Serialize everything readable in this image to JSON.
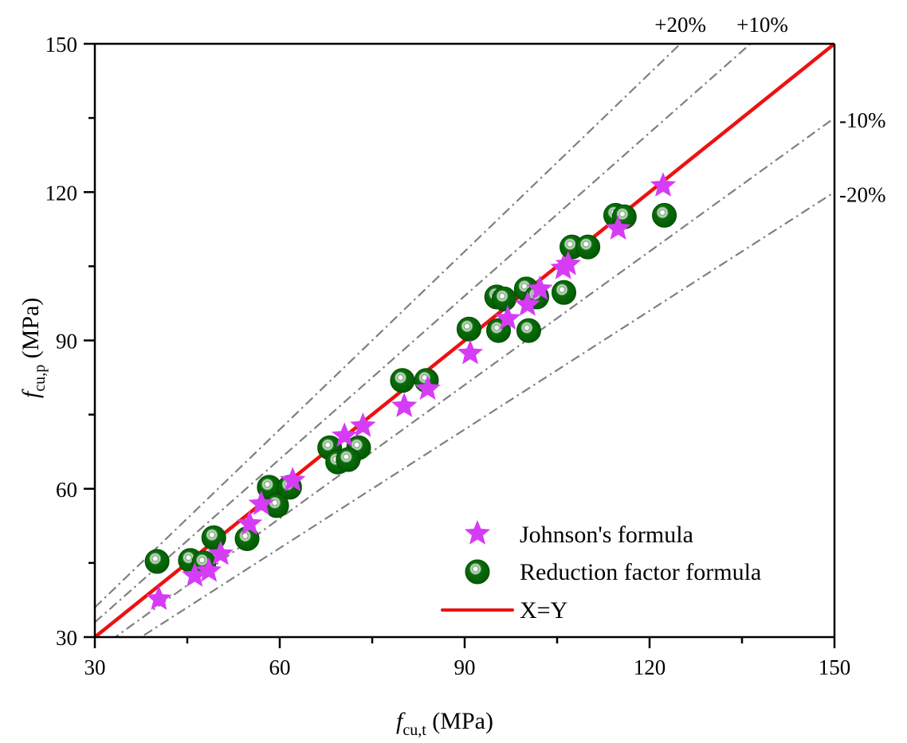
{
  "chart_data": {
    "type": "scatter",
    "title": "",
    "xlabel": {
      "var": "f",
      "sub": "cu,t",
      "unit": " (MPa)"
    },
    "ylabel": {
      "var": "f",
      "sub": "cu,p",
      "unit": " (MPa)"
    },
    "xlim": [
      30,
      150
    ],
    "ylim": [
      30,
      150
    ],
    "x_ticks": [
      30,
      60,
      90,
      120,
      150
    ],
    "y_ticks": [
      30,
      60,
      90,
      120,
      150
    ],
    "x_minor_ticks": [
      45,
      75,
      105,
      135
    ],
    "y_minor_ticks": [
      45,
      75,
      105,
      135
    ],
    "grid": false,
    "legend_position": "bottom-right",
    "series": [
      {
        "name": "Johnson's formula",
        "marker": "star",
        "color": "#d63cf5",
        "points": [
          [
            40.4,
            37.7
          ],
          [
            46.2,
            42.4
          ],
          [
            48.5,
            43.4
          ],
          [
            50.4,
            46.8
          ],
          [
            55.1,
            52.9
          ],
          [
            57.0,
            56.9
          ],
          [
            62.1,
            61.7
          ],
          [
            70.5,
            70.7
          ],
          [
            73.5,
            72.7
          ],
          [
            80.2,
            76.7
          ],
          [
            84.0,
            80.2
          ],
          [
            90.9,
            87.4
          ],
          [
            97.0,
            94.4
          ],
          [
            100.2,
            97.2
          ],
          [
            102.2,
            100.4
          ],
          [
            106.0,
            104.6
          ],
          [
            106.8,
            105.4
          ],
          [
            114.9,
            112.6
          ],
          [
            122.2,
            121.3
          ]
        ]
      },
      {
        "name": "Reduction factor formula",
        "marker": "sphere",
        "color": "#006400",
        "points": [
          [
            40.1,
            45.3
          ],
          [
            45.5,
            45.5
          ],
          [
            47.7,
            45.0
          ],
          [
            49.3,
            50.1
          ],
          [
            54.7,
            49.9
          ],
          [
            58.3,
            60.3
          ],
          [
            61.6,
            60.3
          ],
          [
            59.5,
            56.6
          ],
          [
            68.1,
            68.3
          ],
          [
            72.8,
            68.3
          ],
          [
            69.4,
            65.4
          ],
          [
            71.1,
            65.9
          ],
          [
            79.9,
            81.9
          ],
          [
            83.8,
            81.9
          ],
          [
            90.7,
            92.3
          ],
          [
            95.5,
            92.0
          ],
          [
            100.4,
            92.0
          ],
          [
            95.2,
            98.8
          ],
          [
            96.4,
            98.4
          ],
          [
            100.0,
            100.4
          ],
          [
            101.7,
            98.8
          ],
          [
            106.1,
            99.7
          ],
          [
            107.4,
            108.9
          ],
          [
            110.0,
            108.9
          ],
          [
            114.5,
            115.3
          ],
          [
            115.9,
            115.0
          ],
          [
            122.4,
            115.3
          ]
        ]
      },
      {
        "name": "X=Y",
        "marker": "line",
        "color": "#ee1111",
        "slope": 1.0
      }
    ],
    "reference_lines": [
      {
        "label": "+20%",
        "slope": 1.2,
        "color": "#808080",
        "style": "dash-dot"
      },
      {
        "label": "+10%",
        "slope": 1.1,
        "color": "#808080",
        "style": "dash-dot"
      },
      {
        "label": "-10%",
        "slope": 0.9,
        "color": "#808080",
        "style": "dash-dot"
      },
      {
        "label": "-20%",
        "slope": 0.8,
        "color": "#808080",
        "style": "dash-dot"
      }
    ]
  }
}
